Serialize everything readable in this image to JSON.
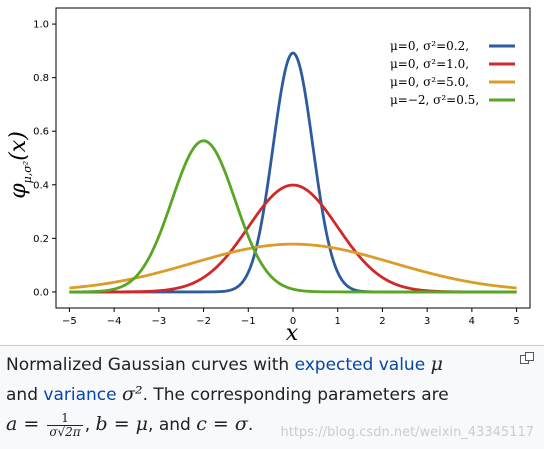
{
  "chart_data": {
    "type": "line",
    "title": "",
    "xlabel": "x",
    "ylabel_main": "φ",
    "ylabel_sub": "μ,σ²",
    "ylabel_arg": "(x)",
    "xlim": [
      -5.3,
      5.3
    ],
    "ylim": [
      -0.06,
      1.06
    ],
    "xticks": [
      "−5",
      "−4",
      "−3",
      "−2",
      "−1",
      "0",
      "1",
      "2",
      "3",
      "4",
      "5"
    ],
    "yticks": [
      "0.0",
      "0.2",
      "0.4",
      "0.6",
      "0.8",
      "1.0"
    ],
    "grid": true,
    "legend_position": "top-right",
    "series": [
      {
        "name": "μ=0,   σ²=0.2,",
        "mean": 0,
        "variance": 0.2,
        "color": "#2e5b9e"
      },
      {
        "name": "μ=0,   σ²=1.0,",
        "mean": 0,
        "variance": 1.0,
        "color": "#cf2929"
      },
      {
        "name": "μ=0,   σ²=5.0,",
        "mean": 0,
        "variance": 5.0,
        "color": "#dc9c2a"
      },
      {
        "name": "μ=−2, σ²=0.5,",
        "mean": -2,
        "variance": 0.5,
        "color": "#58a624"
      }
    ]
  },
  "caption": {
    "text1": "Normalized Gaussian curves with ",
    "link1": "expected value",
    "mu": "μ",
    "text2": "and ",
    "link2": "variance",
    "sigma2": "σ²",
    "text3": ". The corresponding parameters are",
    "a_eq": "a = ",
    "frac_num": "1",
    "frac_den": "σ√2π",
    "text4": ", ",
    "b_eq": "b = μ",
    "text5": ", and ",
    "c_eq": "c = σ",
    "text6": "."
  },
  "watermark": "https://blog.csdn.net/weixin_43345117",
  "icons": {
    "expand": "expand-icon"
  }
}
